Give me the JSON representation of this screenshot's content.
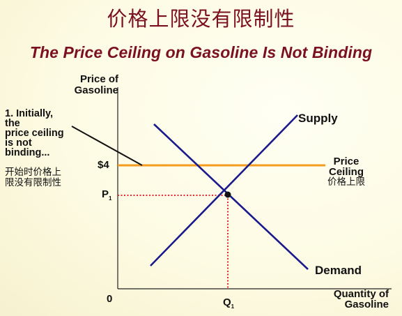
{
  "title_cn": "价格上限没有限制性",
  "title_en": "The Price Ceiling on Gasoline Is Not Binding",
  "axes": {
    "y_label_line1": "Price of",
    "y_label_line2": "Gasoline",
    "x_label_line1": "Quantity of",
    "x_label_line2": "Gasoline",
    "origin": "0"
  },
  "price_ceiling": {
    "value_label": "$4",
    "label_line1": "Price",
    "label_line2": "Ceiling",
    "label_cn": "价格上限",
    "color": "#f39c1d"
  },
  "equilibrium": {
    "price_label": "P",
    "price_sub": "1",
    "quantity_label": "Q",
    "quantity_sub": "1",
    "guide_color": "#e8262f"
  },
  "curves": {
    "supply_label": "Supply",
    "demand_label": "Demand",
    "color": "#1a1a8c"
  },
  "annotation": {
    "line1": "1. Initially,",
    "line2": "the",
    "line3": "price ceiling",
    "line4": "is not",
    "line5": "binding...",
    "cn_line1": "开始时价格上",
    "cn_line2": "限没有限制性"
  }
}
